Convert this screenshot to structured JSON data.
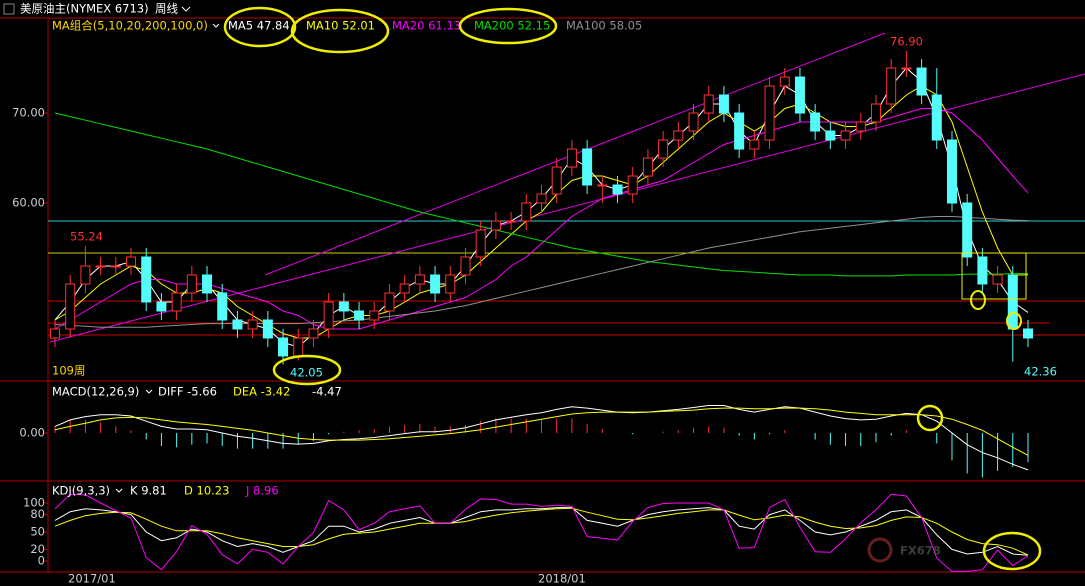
{
  "header": {
    "title": "美原油主(NYMEX 6713)",
    "period": "周线"
  },
  "watermark": "FX678",
  "chart_data": [
    {
      "type": "candlestick",
      "legend_title": "MA组合(5,10,20,200,100,0)",
      "up_color": "#ff3232",
      "down_color": "#54fcfc",
      "open": [
        45,
        46,
        51,
        53,
        53,
        53,
        54,
        49,
        48,
        50,
        52,
        50,
        47,
        46,
        47,
        45,
        43,
        45,
        46,
        49,
        48,
        47,
        48,
        50,
        51,
        52,
        50,
        52,
        54,
        57,
        58,
        58,
        60,
        61,
        64,
        66,
        62,
        62,
        61,
        63,
        65,
        67,
        68,
        70,
        72,
        70,
        66,
        67,
        73,
        74,
        70,
        68,
        67,
        68,
        69,
        71,
        75,
        75,
        72,
        67,
        60,
        54,
        51,
        52,
        46
      ],
      "high": [
        47,
        52,
        55.24,
        54,
        54,
        55,
        55,
        50,
        51,
        53,
        53,
        51,
        48,
        48,
        48,
        46,
        46,
        47,
        50,
        50,
        49,
        49,
        51,
        52,
        53,
        53,
        53,
        55,
        58,
        59,
        59,
        61,
        62,
        65,
        67,
        67,
        63,
        63,
        64,
        66,
        68,
        69,
        71,
        73,
        73,
        71,
        68,
        74,
        75,
        75,
        71,
        69,
        69,
        70,
        72,
        76,
        76.9,
        76,
        75,
        68,
        61,
        55,
        53,
        53,
        47
      ],
      "low": [
        44,
        45,
        50,
        52,
        52,
        52,
        48,
        47,
        47,
        49,
        49,
        46,
        45,
        45,
        44,
        42.05,
        42.5,
        44,
        45,
        47,
        46,
        46,
        47,
        49,
        50,
        49,
        49,
        51,
        53,
        56,
        57,
        57,
        59,
        60,
        63,
        61,
        60,
        60,
        60,
        62,
        64,
        66,
        67,
        69,
        69,
        65,
        65,
        66,
        72,
        69,
        67,
        66,
        66,
        67,
        68,
        70,
        74,
        71,
        66,
        59,
        53,
        50,
        50,
        42.36,
        44
      ],
      "close": [
        46,
        51,
        53,
        53,
        53,
        54,
        49,
        48,
        50,
        52,
        50,
        47,
        46,
        47,
        45,
        43,
        45,
        46,
        49,
        48,
        47,
        48,
        50,
        51,
        52,
        50,
        52,
        54,
        57,
        58,
        58,
        60,
        61,
        64,
        66,
        62,
        62,
        61,
        63,
        65,
        67,
        68,
        70,
        72,
        70,
        66,
        67,
        73,
        74,
        70,
        68,
        67,
        68,
        69,
        71,
        75,
        75,
        72,
        67,
        60,
        54,
        51,
        52,
        46,
        45
      ],
      "series": [
        {
          "name": "MA5 47.84",
          "color": "#ffffff",
          "values": [
            47,
            49,
            51.5,
            53,
            53,
            53.5,
            51.5,
            49,
            49,
            51,
            51,
            49,
            47,
            46.5,
            46,
            44.5,
            44,
            45.5,
            47.5,
            48.5,
            47.5,
            47.5,
            49,
            50.5,
            51.5,
            51,
            51,
            53,
            55.5,
            57.5,
            58,
            59,
            60.5,
            62.5,
            65,
            64,
            62,
            61.5,
            62,
            64,
            66,
            67.5,
            69,
            71,
            71,
            68,
            66.5,
            70,
            73,
            72,
            69,
            67.5,
            67.5,
            68.5,
            70,
            73,
            75,
            73.5,
            69.5,
            64,
            57,
            53,
            51.5,
            49,
            47.84
          ]
        },
        {
          "name": "MA10 52.01",
          "color": "#ffff00",
          "values": [
            47,
            48,
            49.5,
            51,
            52,
            53,
            52.5,
            51,
            50,
            50,
            50.5,
            50,
            48.5,
            47.5,
            46.5,
            45.5,
            45,
            45,
            46,
            47,
            47.5,
            47.5,
            48,
            49,
            50,
            50.5,
            51,
            52,
            53.5,
            55,
            56.5,
            58,
            59,
            61,
            62.5,
            63,
            63,
            62.5,
            62,
            63,
            64.5,
            66,
            67.5,
            69,
            70,
            69,
            68,
            69,
            70.5,
            71,
            70,
            69,
            68.5,
            68.5,
            69,
            70.5,
            72,
            73,
            72,
            69,
            64,
            59,
            55,
            52,
            52.01
          ]
        },
        {
          "name": "MA20 61.13",
          "color": "#ff00ff",
          "values": [
            46,
            47,
            48,
            49,
            50,
            51,
            51.5,
            51.5,
            51,
            51,
            51,
            50.5,
            50,
            49.5,
            49,
            48,
            47.5,
            46.5,
            46,
            46,
            46,
            46.5,
            47,
            47.5,
            48,
            48.5,
            49,
            49.5,
            50.5,
            51.5,
            53,
            54,
            55.5,
            57,
            58.5,
            59.5,
            60.5,
            61,
            61.5,
            62,
            62.5,
            63.5,
            64.5,
            65.5,
            66.5,
            67,
            67.5,
            68,
            68.5,
            69,
            69,
            69,
            69,
            69,
            69,
            69.5,
            70,
            70.5,
            70.5,
            70,
            68.5,
            67,
            65,
            63,
            61.13
          ]
        },
        {
          "name": "MA200 52.15",
          "color": "#00e000",
          "values": [
            70,
            69.6,
            69.2,
            68.8,
            68.4,
            68,
            67.6,
            67.2,
            66.8,
            66.4,
            66,
            65.5,
            65,
            64.5,
            64,
            63.5,
            63,
            62.5,
            62,
            61.5,
            61,
            60.5,
            60,
            59.5,
            59,
            58.6,
            58.2,
            57.8,
            57.4,
            57,
            56.6,
            56.2,
            55.8,
            55.4,
            55,
            54.7,
            54.4,
            54.1,
            53.8,
            53.5,
            53.3,
            53.1,
            52.9,
            52.7,
            52.5,
            52.4,
            52.3,
            52.2,
            52.1,
            52,
            52,
            52,
            51.9,
            51.9,
            51.9,
            51.9,
            52,
            52,
            52,
            52,
            52.1,
            52.1,
            52.1,
            52.15,
            52.15
          ]
        },
        {
          "name": "MA100 58.05",
          "color": "#909090",
          "values": [
            46.5,
            46.4,
            46.3,
            46.2,
            46.2,
            46.2,
            46.2,
            46.3,
            46.4,
            46.5,
            46.6,
            46.6,
            46.6,
            46.6,
            46.6,
            46.6,
            46.6,
            46.7,
            46.8,
            46.9,
            47,
            47.2,
            47.4,
            47.6,
            47.8,
            48,
            48.3,
            48.6,
            49,
            49.4,
            49.8,
            50.2,
            50.6,
            51,
            51.4,
            51.8,
            52.2,
            52.6,
            53,
            53.4,
            53.8,
            54.2,
            54.6,
            55,
            55.3,
            55.6,
            55.9,
            56.2,
            56.5,
            56.8,
            57,
            57.2,
            57.4,
            57.6,
            57.8,
            58,
            58.2,
            58.4,
            58.5,
            58.5,
            58.4,
            58.3,
            58.2,
            58.1,
            58.05
          ]
        }
      ],
      "ylim": [
        40.33,
        80.56
      ],
      "yticks": [
        {
          "value": 60,
          "label": "60.00"
        },
        {
          "value": 70,
          "label": "70.00"
        }
      ],
      "annotations": [
        "76.90",
        "55.24",
        "42.05",
        "42.36",
        "109周"
      ],
      "x_labels": [
        "2017/01",
        "2018/01"
      ]
    },
    {
      "type": "macd",
      "title": "MACD(12,26,9)",
      "series": [
        {
          "name": "DIFF -5.66",
          "color": "#ffffff",
          "values": [
            1,
            2,
            2.5,
            2.8,
            2.8,
            2.6,
            1.8,
            1,
            0.6,
            0.6,
            0.5,
            0,
            -0.5,
            -0.8,
            -1.2,
            -1.6,
            -1.7,
            -1.6,
            -1.2,
            -1,
            -0.9,
            -0.7,
            -0.4,
            -0.1,
            0.2,
            0.2,
            0.4,
            0.8,
            1.4,
            2,
            2.4,
            2.8,
            3.1,
            3.6,
            4,
            3.8,
            3.5,
            3.2,
            3.1,
            3.2,
            3.4,
            3.6,
            3.9,
            4.2,
            4.2,
            3.6,
            3.2,
            3.6,
            4,
            3.8,
            3.2,
            2.6,
            2.2,
            2,
            2.1,
            2.6,
            3,
            2.8,
            1.8,
            0,
            -1.8,
            -3,
            -3.8,
            -4.8,
            -5.66
          ]
        },
        {
          "name": "DEA -3.42",
          "color": "#ffff00",
          "values": [
            0.5,
            1,
            1.5,
            2,
            2.3,
            2.4,
            2.3,
            2,
            1.7,
            1.5,
            1.3,
            1,
            0.7,
            0.4,
            0,
            -0.4,
            -0.8,
            -1,
            -1.1,
            -1.1,
            -1.1,
            -1,
            -0.9,
            -0.7,
            -0.5,
            -0.3,
            -0.1,
            0.2,
            0.5,
            0.9,
            1.3,
            1.7,
            2.1,
            2.5,
            2.9,
            3.1,
            3.2,
            3.2,
            3.2,
            3.2,
            3.3,
            3.4,
            3.5,
            3.7,
            3.8,
            3.8,
            3.7,
            3.7,
            3.8,
            3.8,
            3.7,
            3.5,
            3.2,
            3,
            2.8,
            2.8,
            2.8,
            2.8,
            2.6,
            2.1,
            1.3,
            0.4,
            -0.9,
            -2.2,
            -3.42
          ]
        }
      ],
      "histogram": {
        "name": "-4.47",
        "up_color": "#ff3232",
        "down_color": "#54fcfc",
        "values": [
          1,
          2,
          2,
          1.6,
          1,
          0.4,
          -1,
          -2,
          -2.2,
          -1.8,
          -1.6,
          -2,
          -2.4,
          -2.4,
          -2.4,
          -2.4,
          -1.8,
          -1.2,
          -0.2,
          0.2,
          0.4,
          0.6,
          1,
          1.2,
          1.4,
          1,
          1,
          1.2,
          1.8,
          2.2,
          2.2,
          2.2,
          2,
          2.2,
          2.2,
          1.4,
          0.6,
          0,
          -0.2,
          0,
          0.2,
          0.4,
          0.8,
          1,
          0.8,
          -0.4,
          -1,
          -0.2,
          0.4,
          0,
          -1,
          -1.8,
          -2,
          -2,
          -1.4,
          -0.4,
          0.4,
          0,
          -1.6,
          -4.2,
          -6.2,
          -6.8,
          -5.8,
          -5.2,
          -4.47
        ]
      },
      "ylim": [
        -7.2,
        7.8
      ],
      "yticks": [
        {
          "value": 0,
          "label": "0.00"
        }
      ]
    },
    {
      "type": "kdj",
      "title": "KDJ(9,3,3)",
      "series": [
        {
          "name": "K 9.81",
          "color": "#ffffff",
          "values": [
            70,
            85,
            90,
            88,
            85,
            80,
            50,
            35,
            40,
            55,
            50,
            35,
            25,
            30,
            25,
            15,
            25,
            35,
            60,
            60,
            50,
            55,
            65,
            70,
            75,
            65,
            65,
            75,
            85,
            88,
            88,
            90,
            90,
            92,
            92,
            70,
            65,
            60,
            70,
            80,
            85,
            88,
            90,
            92,
            88,
            60,
            55,
            80,
            88,
            70,
            50,
            45,
            50,
            60,
            70,
            85,
            88,
            75,
            45,
            20,
            12,
            15,
            25,
            12,
            9.81
          ]
        },
        {
          "name": "D 10.23",
          "color": "#ffff00",
          "values": [
            60,
            70,
            78,
            82,
            84,
            83,
            72,
            60,
            52,
            52,
            52,
            47,
            40,
            35,
            30,
            25,
            25,
            28,
            38,
            46,
            48,
            50,
            55,
            60,
            65,
            65,
            65,
            68,
            74,
            79,
            83,
            86,
            88,
            90,
            91,
            84,
            78,
            72,
            71,
            74,
            78,
            82,
            85,
            88,
            88,
            79,
            71,
            74,
            79,
            76,
            67,
            60,
            56,
            57,
            61,
            70,
            76,
            75,
            65,
            50,
            37,
            30,
            28,
            22,
            10.23
          ]
        },
        {
          "name": "J 8.96",
          "color": "#ff00ff",
          "values": [
            90,
            115,
            114,
            100,
            87,
            74,
            6,
            -15,
            16,
            61,
            46,
            11,
            -5,
            20,
            15,
            -5,
            25,
            49,
            104,
            88,
            54,
            65,
            85,
            90,
            95,
            65,
            65,
            89,
            107,
            106,
            98,
            98,
            94,
            96,
            94,
            42,
            39,
            36,
            68,
            92,
            99,
            100,
            100,
            100,
            88,
            22,
            23,
            92,
            106,
            58,
            16,
            15,
            38,
            66,
            88,
            115,
            112,
            75,
            5,
            -18,
            -18,
            -15,
            19,
            -8,
            8.96
          ]
        }
      ],
      "ylim": [
        -19,
        127.5
      ],
      "yticks": [
        0,
        20,
        50,
        80,
        100
      ]
    }
  ]
}
